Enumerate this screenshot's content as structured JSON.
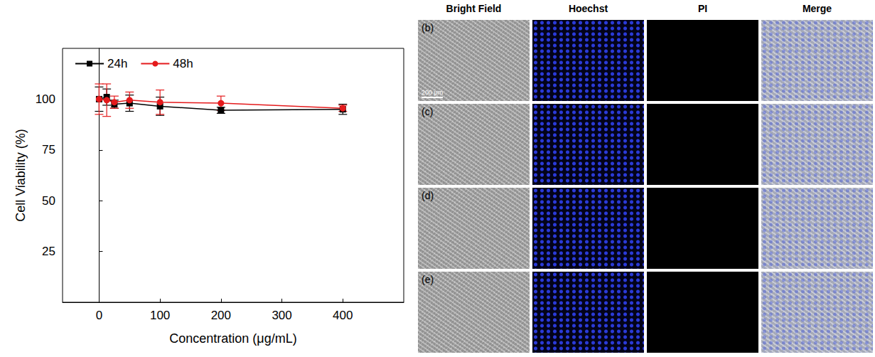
{
  "chart_data": {
    "type": "line",
    "x_label": "Concentration (μg/mL)",
    "y_label": "Cell Viability (%)",
    "x": [
      0,
      12.5,
      25,
      50,
      100,
      200,
      400
    ],
    "series": [
      {
        "name": "24h",
        "color": "#000000",
        "marker": "square",
        "values": [
          100,
          101,
          97.5,
          98,
          96.5,
          94.5,
          95
        ],
        "errors": [
          6,
          4,
          2,
          4,
          4.5,
          1.5,
          2.5
        ]
      },
      {
        "name": "48h",
        "color": "#e41a1c",
        "marker": "circle",
        "values": [
          100,
          99.5,
          98.5,
          99.5,
          98.5,
          98,
          95.5
        ],
        "errors": [
          7.5,
          8,
          3,
          4,
          6,
          3.5,
          1.5
        ]
      }
    ],
    "xlim": [
      -60,
      500
    ],
    "xticks": [
      0,
      100,
      200,
      300,
      400
    ],
    "ylim": [
      0,
      125
    ],
    "yticks": [
      25,
      50,
      75,
      100
    ],
    "legend": "upper left",
    "grid": false
  },
  "panels": {
    "columns": [
      "Bright Field",
      "Hoechst",
      "PI",
      "Merge"
    ],
    "rows": [
      "(b)",
      "(c)",
      "(d)",
      "(e)"
    ],
    "scale_bar": "200 μm"
  }
}
